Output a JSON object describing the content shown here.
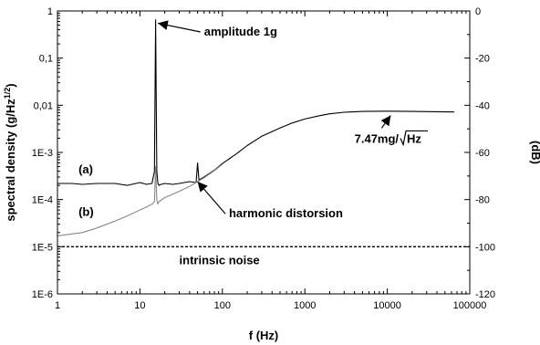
{
  "chart_data": {
    "type": "line",
    "xscale": "log",
    "yscale": "log",
    "xlim": [
      1,
      100000
    ],
    "ylim": [
      1e-06,
      1
    ],
    "y2lim": [
      -120,
      0
    ],
    "grid": false,
    "xlabel": "f (Hz)",
    "ylabel": {
      "base": "spectral density (g/Hz",
      "sup": "1/2",
      "close": ")"
    },
    "y2label": "(dB)",
    "xticks": [
      {
        "v": 1,
        "label": "1"
      },
      {
        "v": 10,
        "label": "10"
      },
      {
        "v": 100,
        "label": "100"
      },
      {
        "v": 1000,
        "label": "1000"
      },
      {
        "v": 10000,
        "label": "10000"
      },
      {
        "v": 100000,
        "label": "100000"
      }
    ],
    "yticks": [
      {
        "v": 1,
        "label": "1"
      },
      {
        "v": 0.1,
        "label": "0,1"
      },
      {
        "v": 0.01,
        "label": "0,01"
      },
      {
        "v": 0.001,
        "label": "1E-3"
      },
      {
        "v": 0.0001,
        "label": "1E-4"
      },
      {
        "v": 1e-05,
        "label": "1E-5"
      },
      {
        "v": 1e-06,
        "label": "1E-6"
      }
    ],
    "y2ticks": [
      {
        "v": 0,
        "label": "0"
      },
      {
        "v": -20,
        "label": "-20"
      },
      {
        "v": -40,
        "label": "-40"
      },
      {
        "v": -60,
        "label": "-60"
      },
      {
        "v": -80,
        "label": "-80"
      },
      {
        "v": -100,
        "label": "-100"
      },
      {
        "v": -120,
        "label": "-120"
      }
    ],
    "series": [
      {
        "name": "(a)",
        "color": "#000000",
        "x": [
          1,
          1.5,
          2,
          3,
          5,
          7,
          10,
          12,
          14,
          15,
          15.5,
          16,
          16.5,
          17,
          18,
          20,
          25,
          30,
          40,
          48,
          50,
          52,
          60,
          80,
          100,
          150,
          200,
          300,
          500,
          700,
          1000,
          1500,
          2000,
          3000,
          5000,
          10000,
          20000,
          40000,
          65000
        ],
        "y": [
          0.00022,
          0.00022,
          0.00021,
          0.00022,
          0.00022,
          0.0002,
          0.00023,
          0.00021,
          0.00022,
          0.0004,
          0.65,
          0.0004,
          0.00022,
          0.0002,
          0.00021,
          0.00022,
          0.00021,
          0.00022,
          0.00024,
          0.00023,
          0.0006,
          0.00026,
          0.0003,
          0.00042,
          0.00058,
          0.00095,
          0.0014,
          0.0022,
          0.0033,
          0.0042,
          0.0051,
          0.006,
          0.0066,
          0.0071,
          0.0074,
          0.0075,
          0.0074,
          0.0073,
          0.0072
        ]
      },
      {
        "name": "(b)",
        "color": "#888888",
        "x": [
          1,
          2,
          3,
          5,
          7,
          10,
          12,
          14,
          15,
          15.5,
          16,
          16.5,
          17,
          20,
          25,
          30,
          40,
          50,
          60,
          80,
          100
        ],
        "y": [
          1.7e-05,
          2e-05,
          2.5e-05,
          3.5e-05,
          4.5e-05,
          6e-05,
          7e-05,
          8e-05,
          9e-05,
          0.0005,
          0.0001,
          8e-05,
          9e-05,
          0.00011,
          0.00013,
          0.00015,
          0.00019,
          0.00024,
          0.00029,
          0.00041,
          0.00056
        ]
      }
    ],
    "reference_line": {
      "label": "intrinsic noise",
      "y": 1e-05,
      "style": "dashed"
    },
    "annotations": [
      {
        "text": "amplitude 1g",
        "x": 60,
        "y": 0.3,
        "arrow_to": [
          16.5,
          0.55
        ]
      },
      {
        "text": "harmonic distorsion",
        "x": 120,
        "y": 4.2e-05,
        "arrow_to": [
          50,
          0.00024
        ]
      },
      {
        "text": "(a)",
        "x": 1.8,
        "y": 0.00036
      },
      {
        "text": "(b)",
        "x": 1.8,
        "y": 4.5e-05
      }
    ],
    "annotation_slope": {
      "prefix": "7.47mg/",
      "radicand": "Hz",
      "x": 4000,
      "y": 0.0016,
      "arrow_to": [
        11000,
        0.0061
      ]
    }
  }
}
